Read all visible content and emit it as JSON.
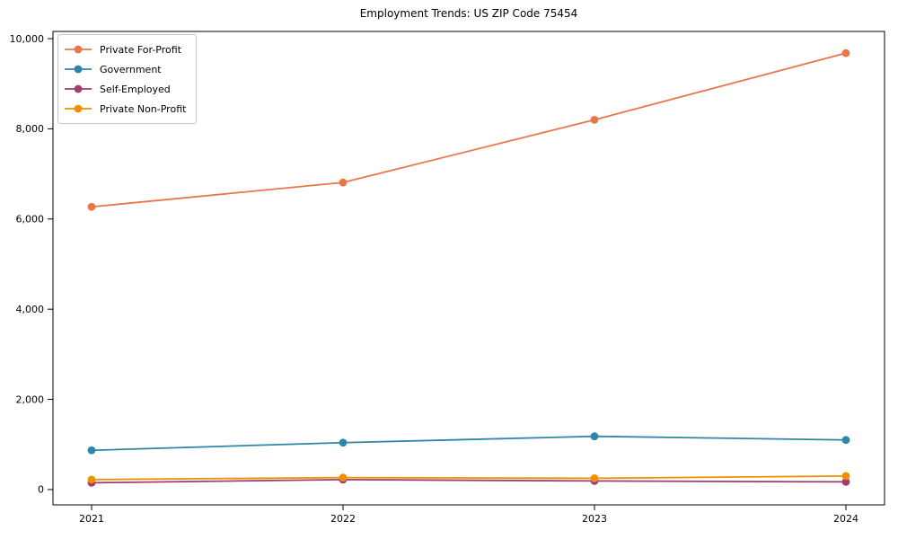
{
  "figure": {
    "background": "#ffffff",
    "spine_color": "#000000",
    "tick_color": "#000000",
    "text_color": "#000000"
  },
  "chart_data": {
    "type": "line",
    "title": "Employment Trends: US ZIP Code 75454",
    "xlabel": "",
    "ylabel": "",
    "categories": [
      "2021",
      "2022",
      "2023",
      "2024"
    ],
    "series": [
      {
        "name": "Private For-Profit",
        "color": "#E8764B",
        "values": [
          6270,
          6810,
          8200,
          9680
        ]
      },
      {
        "name": "Government",
        "color": "#2E86AB",
        "values": [
          870,
          1040,
          1180,
          1100
        ]
      },
      {
        "name": "Self-Employed",
        "color": "#A23B72",
        "values": [
          150,
          220,
          190,
          170
        ]
      },
      {
        "name": "Private Non-Profit",
        "color": "#F18F01",
        "values": [
          220,
          265,
          250,
          300
        ]
      }
    ],
    "yticks": [
      0,
      2000,
      4000,
      6000,
      8000,
      10000
    ],
    "ytick_labels": [
      "0",
      "2,000",
      "4,000",
      "6,000",
      "8,000",
      "10,000"
    ],
    "ylim": [
      -340,
      10160
    ],
    "grid": false,
    "legend_position": "upper left",
    "marker": "circle",
    "line_width": 1.8,
    "marker_radius": 4.4
  }
}
